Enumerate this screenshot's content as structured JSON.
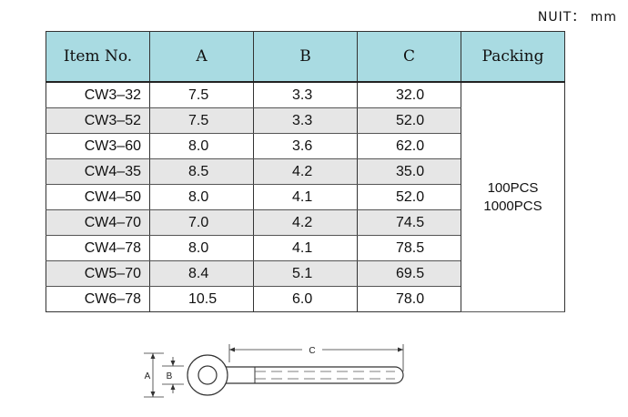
{
  "unit_label": "NUIT： mm",
  "table": {
    "headers": [
      "Item No.",
      "A",
      "B",
      "C",
      "Packing"
    ],
    "rows": [
      {
        "item": "CW3–32",
        "a": "7.5",
        "b": "3.3",
        "c": "32.0"
      },
      {
        "item": "CW3–52",
        "a": "7.5",
        "b": "3.3",
        "c": "52.0"
      },
      {
        "item": "CW3–60",
        "a": "8.0",
        "b": "3.6",
        "c": "62.0"
      },
      {
        "item": "CW4–35",
        "a": "8.5",
        "b": "4.2",
        "c": "35.0"
      },
      {
        "item": "CW4–50",
        "a": "8.0",
        "b": "4.1",
        "c": "52.0"
      },
      {
        "item": "CW4–70",
        "a": "7.0",
        "b": "4.2",
        "c": "74.5"
      },
      {
        "item": "CW4–78",
        "a": "8.0",
        "b": "4.1",
        "c": "78.5"
      },
      {
        "item": "CW5–70",
        "a": "8.4",
        "b": "5.1",
        "c": "69.5"
      },
      {
        "item": "CW6–78",
        "a": "10.5",
        "b": "6.0",
        "c": "78.0"
      }
    ],
    "packing": [
      "100PCS",
      "1000PCS"
    ]
  },
  "diagram": {
    "label_a": "A",
    "label_b": "B",
    "label_c": "C"
  }
}
